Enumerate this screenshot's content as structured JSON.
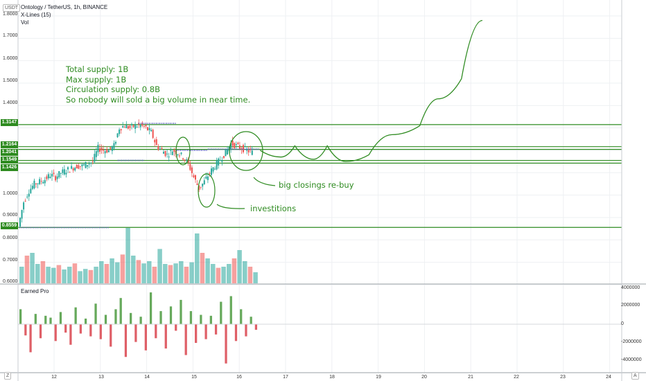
{
  "header": {
    "symbol_line": "Ontology / TetherUS, 1h, BINANCE",
    "indicator_line": "X-Lines (15)",
    "volume_line": "Vol",
    "currency": "USDT"
  },
  "lower_pane": {
    "title": "Earned Pro"
  },
  "notes": {
    "lines": [
      "Total supply: 1B",
      "Max supply: 1B",
      "Circulation supply: 0.8B",
      "So nobody will sold a big volume in near time."
    ]
  },
  "callouts": {
    "reclose": "big closings re-buy",
    "invest": "investitions"
  },
  "corner": {
    "left": "Z",
    "right": "A"
  },
  "colors": {
    "up": "#26a69a",
    "down": "#ef5350",
    "annotation": "#2e8b20",
    "hline": "#2e8b20",
    "xline_marker": "#5b5fc7",
    "grid": "#eef0f3"
  },
  "chart_data": [
    {
      "type": "candlestick",
      "title": "Ontology / TetherUS, 1h, BINANCE",
      "ylabel": "USDT",
      "ylim": [
        0.59,
        1.9
      ],
      "y_ticks": [
        "1.8000",
        "1.7000",
        "1.6000",
        "1.5000",
        "1.4000",
        "1.3000",
        "1.2000",
        "1.1000",
        "1.0000",
        "0.9000",
        "0.8000",
        "0.7000",
        "0.6000"
      ],
      "x_ticks": [
        "12",
        "13",
        "14",
        "15",
        "16",
        "17",
        "18",
        "19",
        "20",
        "21",
        "22",
        "23",
        "24"
      ],
      "horizontal_levels": [
        "1.3147",
        "1.2164",
        "1.2041",
        "1.1549",
        "1.1426",
        "0.8559"
      ],
      "close_path": [
        0.86,
        0.97,
        1.02,
        1.05,
        1.06,
        1.07,
        1.09,
        1.08,
        1.1,
        1.11,
        1.12,
        1.13,
        1.13,
        1.14,
        1.15,
        1.21,
        1.2,
        1.2,
        1.22,
        1.3,
        1.31,
        1.3,
        1.31,
        1.31,
        1.3,
        1.28,
        1.22,
        1.2,
        1.18,
        1.2,
        1.19,
        1.17,
        1.14,
        1.08,
        1.03,
        1.06,
        1.1,
        1.13,
        1.16,
        1.19,
        1.23,
        1.22,
        1.21,
        1.2,
        1.19
      ],
      "projection_path": [
        [
          16.45,
          1.2
        ],
        [
          16.9,
          1.17
        ],
        [
          17.2,
          1.22
        ],
        [
          17.6,
          1.16
        ],
        [
          17.9,
          1.22
        ],
        [
          18.3,
          1.15
        ],
        [
          18.8,
          1.18
        ],
        [
          19.3,
          1.27
        ],
        [
          19.9,
          1.31
        ],
        [
          20.3,
          1.43
        ],
        [
          20.8,
          1.52
        ],
        [
          21.25,
          1.78
        ]
      ]
    },
    {
      "type": "bar",
      "title": "Vol",
      "series": [
        {
          "values": [
            0.3,
            0.5,
            0.55,
            0.35,
            0.4,
            0.3,
            0.28,
            0.33,
            0.25,
            0.3,
            0.36,
            0.22,
            0.26,
            0.24,
            0.3,
            0.4,
            0.35,
            0.45,
            0.38,
            0.52,
            1.0,
            0.5,
            0.42,
            0.36,
            0.4,
            0.3,
            0.62,
            0.35,
            0.33,
            0.36,
            0.4,
            0.3,
            0.38,
            0.9,
            0.55,
            0.45,
            0.35,
            0.28,
            0.3,
            0.35,
            0.45,
            0.6,
            0.4,
            0.3,
            0.2
          ]
        }
      ]
    },
    {
      "type": "bar",
      "title": "Earned Pro",
      "ylim": [
        -5000000,
        5000000
      ],
      "y_ticks": [
        "4000000",
        "2000000",
        "0",
        "-2000000",
        "-4000000"
      ],
      "series": [
        {
          "values": [
            1.6,
            -1.2,
            -3.0,
            1.1,
            -1.5,
            0.9,
            0.7,
            -1.8,
            1.3,
            -0.9,
            -2.2,
            1.8,
            -1.0,
            0.6,
            -1.3,
            2.2,
            -1.6,
            1.0,
            -2.4,
            1.6,
            2.8,
            -3.5,
            1.2,
            -1.9,
            0.8,
            -2.8,
            3.4,
            -1.5,
            1.4,
            -2.6,
            1.9,
            -0.7,
            2.6,
            -3.3,
            1.4,
            -2.0,
            1.0,
            -1.6,
            0.9,
            -1.1,
            2.4,
            -4.2,
            3.0,
            -1.8,
            1.6,
            -1.3,
            0.8,
            -0.6
          ]
        }
      ]
    }
  ]
}
